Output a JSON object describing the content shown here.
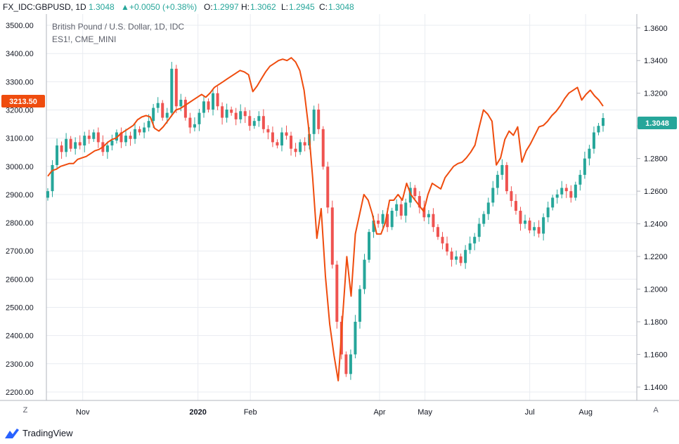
{
  "header": {
    "symbol": "FX_IDC:GBPUSD, 1D",
    "last": "1.3048",
    "change_icon": "triangle-up-icon",
    "change": "+0.0050 (+0.38%)",
    "o_label": "O:",
    "o_value": "1.2997",
    "h_label": "H:",
    "h_value": "1.3062",
    "l_label": "L:",
    "l_value": "1.2945",
    "c_label": "C:",
    "c_value": "1.3048"
  },
  "legend": {
    "main": "British Pound / U.S. Dollar, 1D, IDC",
    "secondary": "ES1!, CME_MINI"
  },
  "footer": {
    "brand": "TradingView",
    "left_button": "Z",
    "right_button": "A"
  },
  "colors": {
    "up": "#26a69a",
    "down": "#ef5350",
    "es_line": "#ef4c0e",
    "grid": "#e9ecf1",
    "axis": "#131722"
  },
  "chart_data": {
    "type": "line",
    "left_axis": {
      "series": "ES1!, CME_MINI",
      "ylim": [
        2170,
        3540
      ],
      "ticks": [
        "2200.00",
        "2300.00",
        "2400.00",
        "2500.00",
        "2600.00",
        "2700.00",
        "2800.00",
        "2900.00",
        "3000.00",
        "3100.00",
        "3200.00",
        "3300.00",
        "3400.00",
        "3500.00"
      ],
      "last_value_label": "3213.50"
    },
    "right_axis": {
      "series": "British Pound / U.S. Dollar, 1D, IDC",
      "ylim": [
        1.1318,
        1.3685
      ],
      "ticks": [
        "1.1400",
        "1.1600",
        "1.1800",
        "1.2000",
        "1.2200",
        "1.2400",
        "1.2600",
        "1.2800",
        "1.3000",
        "1.3200",
        "1.3400",
        "1.3600"
      ],
      "last_value_label": "1.3048"
    },
    "x_axis": {
      "labels": [
        "Nov",
        "2020",
        "Feb",
        "Apr",
        "May",
        "Jul",
        "Aug"
      ],
      "bold": [
        "2020"
      ]
    },
    "grid": true,
    "series": [
      {
        "name": "ES1!, CME_MINI",
        "type": "line",
        "y_axis": "left",
        "values": [
          2965,
          2985,
          2990,
          3000,
          3005,
          3010,
          3010,
          3025,
          3030,
          3035,
          3045,
          3055,
          3060,
          3070,
          3085,
          3095,
          3100,
          3115,
          3125,
          3135,
          3145,
          3165,
          3175,
          3180,
          3175,
          3135,
          3125,
          3140,
          3160,
          3180,
          3200,
          3205,
          3215,
          3225,
          3235,
          3245,
          3255,
          3245,
          3260,
          3280,
          3290,
          3300,
          3310,
          3320,
          3330,
          3340,
          3335,
          3325,
          3265,
          3285,
          3310,
          3335,
          3355,
          3365,
          3375,
          3380,
          3375,
          3385,
          3370,
          3340,
          3270,
          3145,
          2960,
          2745,
          2850,
          2610,
          2440,
          2330,
          2240,
          2460,
          2680,
          2540,
          2760,
          2830,
          2900,
          2880,
          2830,
          2760,
          2760,
          2800,
          2880,
          2880,
          2900,
          2880,
          2940,
          2900,
          2880,
          2860,
          2840,
          2900,
          2940,
          2930,
          2920,
          2960,
          2980,
          3000,
          3010,
          3015,
          3030,
          3050,
          3075,
          3140,
          3200,
          3185,
          3160,
          3005,
          3030,
          3095,
          3125,
          3110,
          3140,
          3015,
          3055,
          3080,
          3110,
          3140,
          3145,
          3160,
          3180,
          3195,
          3215,
          3240,
          3260,
          3270,
          3280,
          3235,
          3255,
          3270,
          3250,
          3235,
          3213.5
        ]
      },
      {
        "name": "British Pound / U.S. Dollar, 1D, IDC",
        "type": "candlestick",
        "y_axis": "right",
        "close": [
          1.26,
          1.276,
          1.288,
          1.284,
          1.292,
          1.286,
          1.29,
          1.288,
          1.294,
          1.292,
          1.296,
          1.29,
          1.284,
          1.288,
          1.291,
          1.296,
          1.29,
          1.294,
          1.292,
          1.298,
          1.296,
          1.299,
          1.303,
          1.311,
          1.314,
          1.305,
          1.308,
          1.335,
          1.312,
          1.316,
          1.305,
          1.299,
          1.301,
          1.308,
          1.315,
          1.31,
          1.32,
          1.312,
          1.305,
          1.31,
          1.308,
          1.304,
          1.309,
          1.306,
          1.3,
          1.303,
          1.306,
          1.298,
          1.296,
          1.29,
          1.288,
          1.296,
          1.294,
          1.286,
          1.284,
          1.29,
          1.288,
          1.295,
          1.31,
          1.298,
          1.275,
          1.25,
          1.215,
          1.18,
          1.16,
          1.148,
          1.16,
          1.18,
          1.2,
          1.218,
          1.235,
          1.242,
          1.24,
          1.246,
          1.238,
          1.248,
          1.252,
          1.245,
          1.253,
          1.262,
          1.257,
          1.25,
          1.244,
          1.246,
          1.238,
          1.232,
          1.228,
          1.223,
          1.218,
          1.22,
          1.216,
          1.224,
          1.228,
          1.232,
          1.24,
          1.246,
          1.253,
          1.262,
          1.27,
          1.276,
          1.26,
          1.254,
          1.248,
          1.24,
          1.242,
          1.236,
          1.238,
          1.234,
          1.244,
          1.25,
          1.256,
          1.258,
          1.262,
          1.26,
          1.256,
          1.264,
          1.27,
          1.28,
          1.286,
          1.296,
          1.3,
          1.3048
        ]
      }
    ]
  }
}
